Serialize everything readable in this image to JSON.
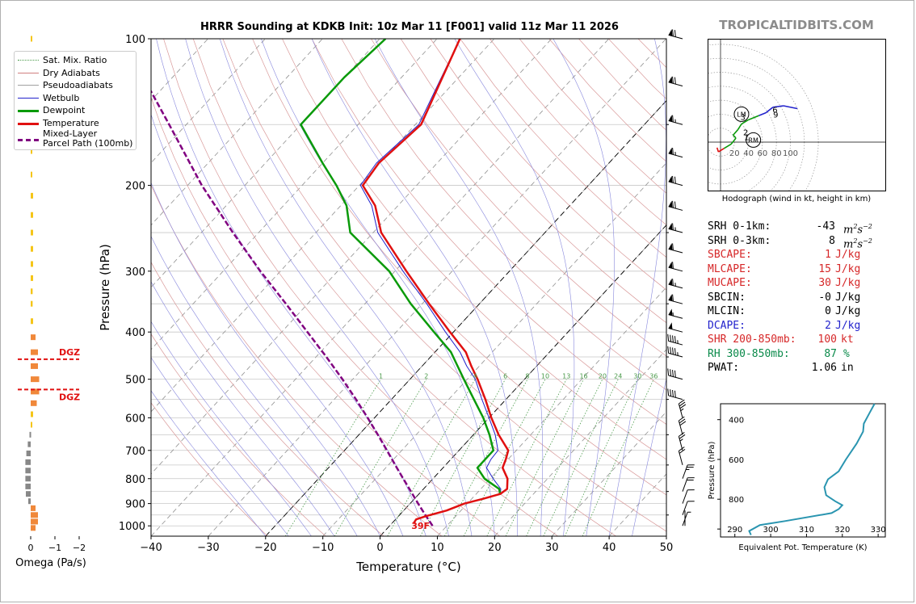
{
  "header": {
    "title": "HRRR Sounding at KDKB Init: 10z Mar 11 [F001] valid 11z Mar 11 2026",
    "brand": "TROPICALTIDBITS.COM"
  },
  "legend": {
    "items": [
      {
        "label": "Sat. Mix. Ratio",
        "color": "#4a9a4a",
        "style": "dotted"
      },
      {
        "label": "Dry Adiabats",
        "color": "#d08080",
        "style": "solid-thin"
      },
      {
        "label": "Pseudoadiabats",
        "color": "#a0a0a0",
        "style": "solid-thin"
      },
      {
        "label": "Wetbulb",
        "color": "#2222cc",
        "style": "solid-thin"
      },
      {
        "label": "Dewpoint",
        "color": "#0a9a0a",
        "style": "solid-thick"
      },
      {
        "label": "Temperature",
        "color": "#e01010",
        "style": "solid-thick"
      },
      {
        "label": "Mixed-Layer\nParcel Path (100mb)",
        "color": "#800080",
        "style": "dashed-thick"
      }
    ]
  },
  "skewt": {
    "xlabel": "Temperature (°C)",
    "ylabel": "Pressure (hPa)",
    "x_ticks": [
      -40,
      -30,
      -20,
      -10,
      0,
      10,
      20,
      30,
      40,
      50
    ],
    "p_ticks": [
      100,
      200,
      300,
      400,
      500,
      600,
      700,
      800,
      900,
      1000
    ],
    "mix_labels": [
      "1",
      "2",
      "4",
      "6",
      "8",
      "10",
      "13",
      "16",
      "20",
      "24",
      "30",
      "36"
    ],
    "surface_label": "39F",
    "dgz_label": "DGZ"
  },
  "chart_data": {
    "type": "line",
    "title": "HRRR Sounding at KDKB Init: 10z Mar 11 [F001] valid 11z Mar 11 2026",
    "xlabel": "Temperature (°C)",
    "ylabel": "Pressure (hPa)",
    "xlim": [
      -40,
      50
    ],
    "ylim": [
      1050,
      100
    ],
    "log_pressure_axis": true,
    "skew": true,
    "series": [
      {
        "name": "Temperature",
        "color": "#e01010",
        "p": [
          990,
          970,
          955,
          930,
          900,
          880,
          860,
          840,
          800,
          760,
          730,
          700,
          650,
          600,
          550,
          500,
          470,
          440,
          400,
          350,
          300,
          250,
          220,
          200,
          180,
          150,
          100
        ],
        "t": [
          3.8,
          3.6,
          4.8,
          7.5,
          9.5,
          12.0,
          14.2,
          14.6,
          13.0,
          10.4,
          9.6,
          8.6,
          4.4,
          0.4,
          -3.6,
          -8.2,
          -11.4,
          -14.6,
          -20.6,
          -28.8,
          -38.0,
          -48.6,
          -54.0,
          -59.4,
          -60.2,
          -59.0,
          -66.0
        ]
      },
      {
        "name": "Dewpoint",
        "color": "#0a9a0a",
        "p": [
          860,
          840,
          800,
          760,
          730,
          700,
          650,
          600,
          550,
          500,
          470,
          440,
          400,
          350,
          300,
          250,
          220,
          200,
          180,
          150,
          120,
          100
        ],
        "t": [
          14.2,
          13.2,
          9.0,
          6.0,
          6.0,
          6.0,
          2.8,
          -1.0,
          -5.6,
          -10.6,
          -13.8,
          -17.2,
          -23.4,
          -32.0,
          -41.0,
          -54.0,
          -59.0,
          -64.0,
          -70.0,
          -80.0,
          -80.0,
          -79.0
        ]
      },
      {
        "name": "Wetbulb",
        "color": "#2222cc",
        "p": [
          860,
          840,
          800,
          760,
          730,
          700,
          650,
          600,
          550,
          500,
          470,
          440,
          400,
          350,
          300,
          250,
          220,
          200,
          180,
          150,
          100
        ],
        "t": [
          14.2,
          13.5,
          10.5,
          7.6,
          7.0,
          6.8,
          3.8,
          0.0,
          -4.2,
          -8.6,
          -12.2,
          -15.6,
          -21.4,
          -29.2,
          -38.6,
          -49.2,
          -54.6,
          -59.8,
          -60.6,
          -59.4,
          -66.0
        ]
      },
      {
        "name": "Mixed-Layer Parcel Path (100mb)",
        "color": "#800080",
        "p": [
          1000,
          950,
          900,
          850,
          800,
          750,
          700,
          650,
          600,
          550,
          500,
          450,
          400,
          350,
          300,
          250,
          200,
          150,
          100
        ],
        "t": [
          7.5,
          4.5,
          1.4,
          -1.8,
          -5.2,
          -8.8,
          -12.6,
          -16.7,
          -21.2,
          -26.2,
          -31.8,
          -38.2,
          -45.5,
          -53.8,
          -63.5,
          -74.5,
          -87.5,
          -103,
          -125
        ]
      }
    ],
    "omega": {
      "xlabel": "Omega (Pa/s)",
      "x_ticks": [
        0,
        -1,
        -2
      ],
      "xlim": [
        0.25,
        -2.15
      ],
      "p": [
        100,
        150,
        170,
        190,
        210,
        230,
        250,
        270,
        290,
        310,
        330,
        350,
        380,
        410,
        440,
        470,
        500,
        530,
        560,
        590,
        620,
        650,
        680,
        710,
        740,
        770,
        800,
        830,
        860,
        890,
        920,
        950,
        980,
        1010
      ],
      "values": [
        -0.05,
        -0.05,
        -0.05,
        -0.05,
        -0.1,
        -0.1,
        -0.1,
        -0.1,
        -0.1,
        -0.1,
        -0.08,
        -0.08,
        -0.1,
        -0.2,
        -0.3,
        -0.3,
        -0.35,
        -0.35,
        -0.25,
        -0.1,
        -0.02,
        0.05,
        0.12,
        0.18,
        0.22,
        0.22,
        0.22,
        0.22,
        0.2,
        0.1,
        -0.2,
        -0.3,
        -0.3,
        -0.2
      ],
      "dgz_p": [
        455,
        525
      ]
    },
    "barbs": {
      "p": [
        100,
        125,
        150,
        175,
        200,
        225,
        250,
        275,
        300,
        325,
        350,
        375,
        400,
        425,
        450,
        500,
        550,
        600,
        650,
        700,
        750,
        800,
        850,
        900,
        950,
        1000
      ],
      "speed_kt": [
        70,
        70,
        65,
        65,
        70,
        70,
        65,
        60,
        60,
        65,
        60,
        55,
        50,
        45,
        45,
        40,
        40,
        35,
        30,
        25,
        20,
        25,
        20,
        10,
        10,
        5
      ]
    },
    "hodograph": {
      "caption": "Hodograph (wind in kt, height in km)",
      "rings_labels": [
        "20",
        "40",
        "60",
        "80",
        "100"
      ],
      "ring_values": [
        20,
        40,
        60,
        80,
        100
      ],
      "u": [
        -5,
        -3,
        5,
        15,
        20,
        22,
        18,
        25,
        30,
        40,
        55,
        65,
        75,
        90,
        110
      ],
      "v": [
        -8,
        -14,
        -9,
        -3,
        3,
        6,
        10,
        18,
        26,
        32,
        38,
        42,
        50,
        52,
        48
      ],
      "height_labels": [
        "1",
        "2",
        "3",
        "6",
        "9"
      ],
      "lm_label": "LM",
      "rm_label": "RM"
    },
    "theta_e": {
      "xlabel": "Equivalent Pot. Temperature (K)",
      "ylabel": "Pressure (hPa)",
      "x_ticks": [
        290,
        300,
        310,
        320,
        330
      ],
      "xlim": [
        286,
        332
      ],
      "y_ticks": [
        400,
        600,
        800
      ],
      "ylim": [
        990,
        320
      ],
      "theta": [
        329,
        327.5,
        326,
        325.8,
        324,
        321,
        319,
        316,
        315,
        315.5,
        318,
        320,
        319,
        317,
        304,
        297,
        294,
        294.5
      ],
      "p": [
        320,
        370,
        420,
        460,
        520,
        600,
        660,
        700,
        740,
        780,
        810,
        830,
        850,
        870,
        910,
        930,
        960,
        980
      ]
    }
  },
  "stats": [
    {
      "label": "SRH 0-1km:",
      "value": "-43",
      "unit": "m2s-2",
      "color": "#000000"
    },
    {
      "label": "SRH 0-3km:",
      "value": "8",
      "unit": "m2s-2",
      "color": "#000000"
    },
    {
      "label": "SBCAPE:",
      "value": "1",
      "unit": "J/kg",
      "color": "#d62728"
    },
    {
      "label": "MLCAPE:",
      "value": "15",
      "unit": "J/kg",
      "color": "#d62728"
    },
    {
      "label": "MUCAPE:",
      "value": "30",
      "unit": "J/kg",
      "color": "#d62728"
    },
    {
      "label": "SBCIN:",
      "value": "-0",
      "unit": "J/kg",
      "color": "#000000"
    },
    {
      "label": "MLCIN:",
      "value": "0",
      "unit": "J/kg",
      "color": "#000000"
    },
    {
      "label": "DCAPE:",
      "value": "2",
      "unit": "J/kg",
      "color": "#2222cc"
    },
    {
      "label": "SHR 200-850mb:",
      "value": "100",
      "unit": "kt",
      "color": "#d62728"
    },
    {
      "label": "RH 300-850mb:",
      "value": "87",
      "unit": "%",
      "color": "#0a8a4a"
    },
    {
      "label": "PWAT:",
      "value": "1.06",
      "unit": "in",
      "color": "#000000"
    }
  ]
}
